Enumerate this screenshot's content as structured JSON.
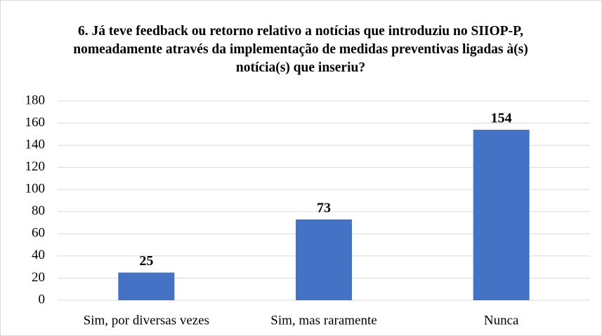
{
  "chart_data": {
    "type": "bar",
    "title": "6. Já teve feedback ou retorno relativo a notícias que introduziu no SIIOP-P, nomeadamente através da implementação de medidas preventivas ligadas à(s) notícia(s) que inseriu?",
    "categories": [
      "Sim, por diversas vezes",
      "Sim, mas raramente",
      "Nunca"
    ],
    "values": [
      25,
      73,
      154
    ],
    "color": "#4472c4",
    "ylim": [
      0,
      180
    ],
    "yticks": [
      0,
      20,
      40,
      60,
      80,
      100,
      120,
      140,
      160,
      180
    ],
    "grid": true
  }
}
